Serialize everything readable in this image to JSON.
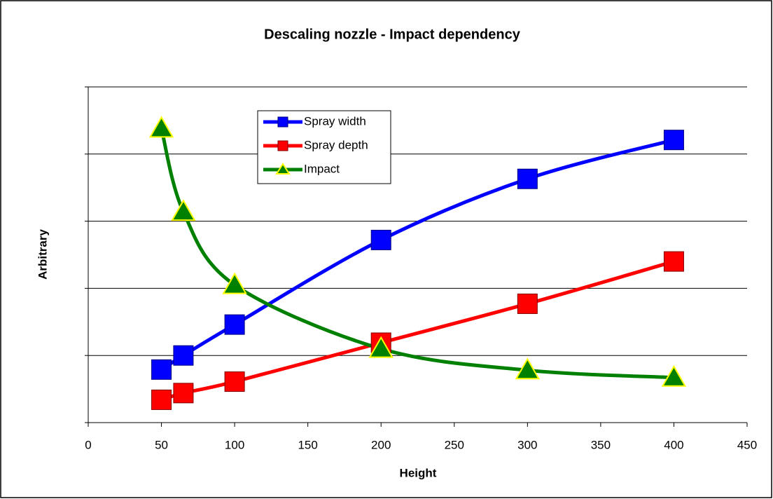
{
  "chart_data": {
    "type": "line",
    "title": "Descaling nozzle - Impact dependency",
    "x_label": "Height",
    "y_label": "Arbitrary",
    "x": [
      50,
      65,
      100,
      200,
      300,
      400
    ],
    "series": [
      {
        "name": "Spray width",
        "color": "#0000ff",
        "marker": "square",
        "values": [
          0.79,
          1.0,
          1.46,
          2.72,
          3.63,
          4.21
        ]
      },
      {
        "name": "Spray depth",
        "color": "#ff0000",
        "marker": "square",
        "values": [
          0.34,
          0.44,
          0.61,
          1.19,
          1.77,
          2.4
        ]
      },
      {
        "name": "Impact",
        "color": "#008000",
        "marker": "triangle",
        "values": [
          4.38,
          3.14,
          2.05,
          1.1,
          0.78,
          0.67
        ]
      }
    ],
    "xlim": [
      0,
      450
    ],
    "xticks": [
      0,
      50,
      100,
      150,
      200,
      250,
      300,
      350,
      400,
      450
    ],
    "ylim": [
      0,
      5
    ],
    "yticks": [
      0,
      1,
      2,
      3,
      4,
      5
    ],
    "grid": true,
    "smooth": true
  }
}
